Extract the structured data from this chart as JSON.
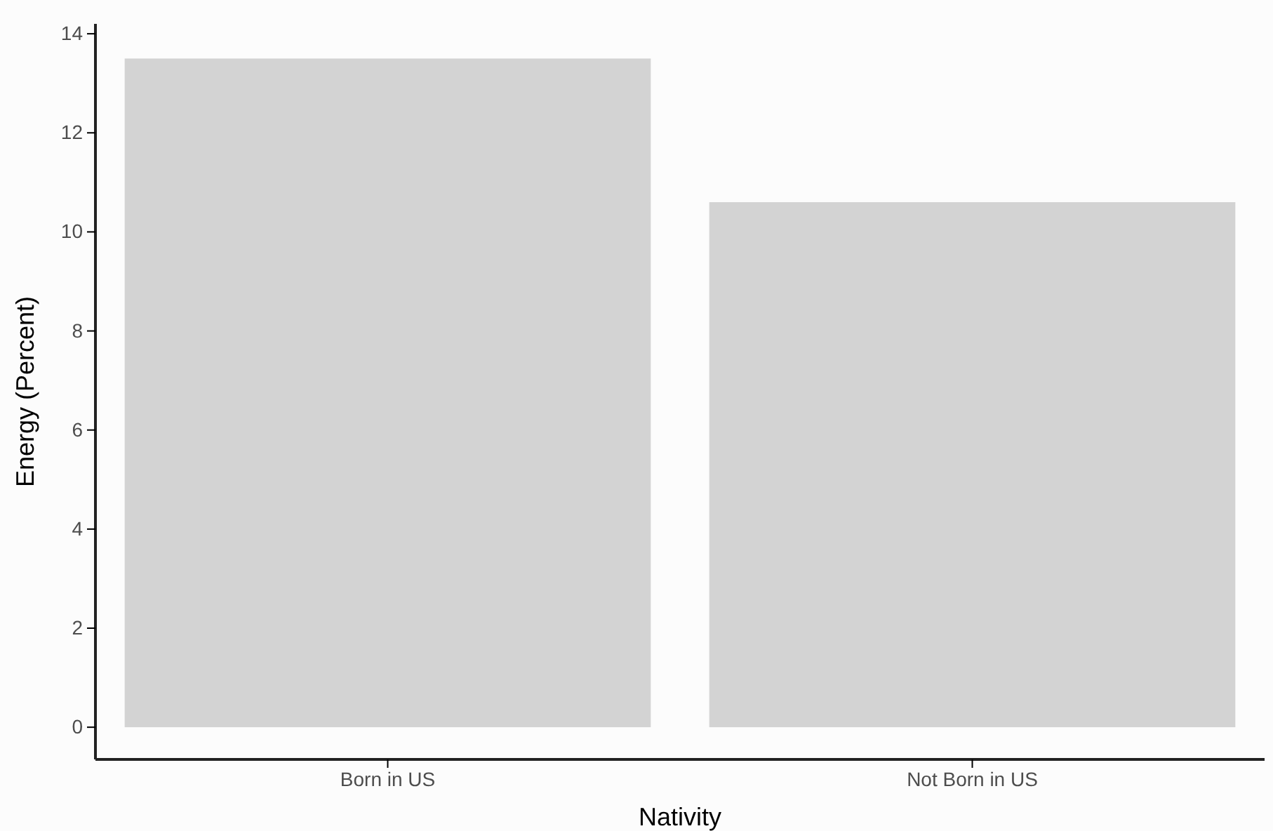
{
  "chart_data": {
    "type": "bar",
    "xlabel": "Nativity",
    "ylabel": "Energy (Percent)",
    "categories": [
      "Born in US",
      "Not Born in US"
    ],
    "values": [
      13.5,
      10.6
    ],
    "color": "#d3d3d3",
    "ylim": [
      -0.65,
      14.2
    ],
    "yticks": [
      0,
      2,
      4,
      6,
      8,
      10,
      12,
      14
    ],
    "grid": false
  }
}
